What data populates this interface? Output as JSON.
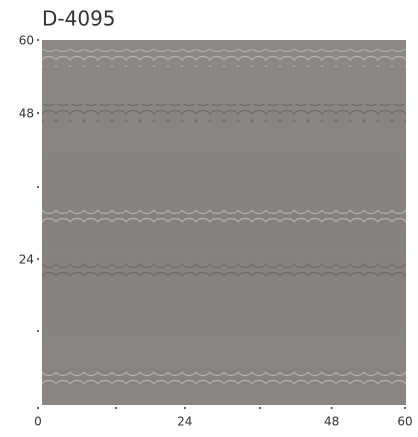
{
  "title": "D-4095",
  "xlim": [
    0,
    60
  ],
  "ylim": [
    0,
    60
  ],
  "xticks": [
    0,
    24,
    48,
    60
  ],
  "yticks": [
    60,
    48,
    24
  ]
}
